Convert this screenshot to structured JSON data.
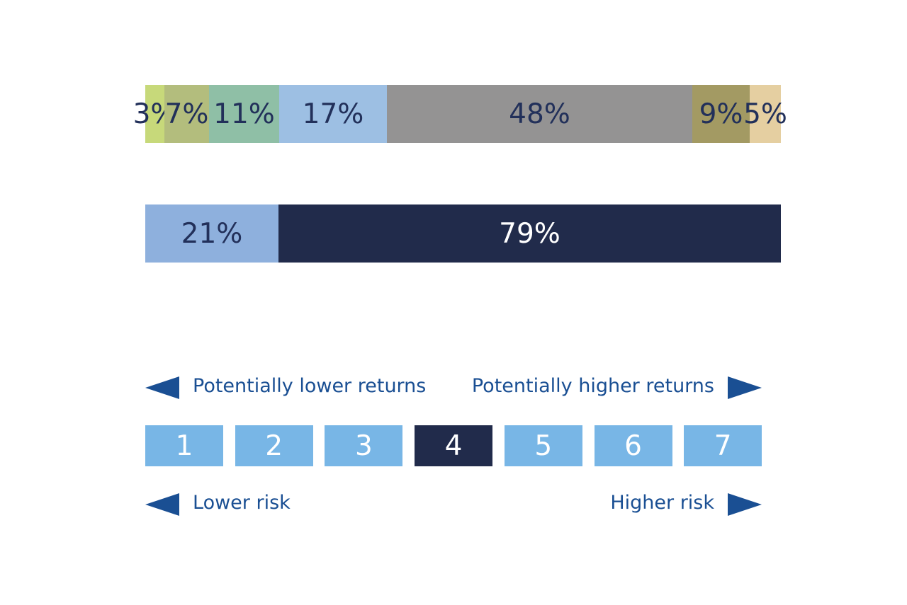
{
  "chart_data": [
    {
      "type": "bar",
      "orientation": "horizontal-stacked",
      "categories": [
        "3%",
        "7%",
        "11%",
        "17%",
        "48%",
        "9%",
        "5%"
      ],
      "values": [
        3,
        7,
        11,
        17,
        48,
        9,
        5
      ],
      "colors": [
        "#c7d97a",
        "#b3bd7d",
        "#8fbfa6",
        "#9dbfe3",
        "#949393",
        "#a39a63",
        "#e5cfa1"
      ],
      "text_color": "#22305a",
      "labels": [
        "3%",
        "7%",
        "11%",
        "17%",
        "48%",
        "9%",
        "5%"
      ]
    },
    {
      "type": "bar",
      "orientation": "horizontal-stacked",
      "categories": [
        "21%",
        "79%"
      ],
      "values": [
        21,
        79
      ],
      "colors": [
        "#8eb0dd",
        "#212b4b"
      ],
      "text_colors": [
        "#22305a",
        "#ffffff"
      ],
      "labels": [
        "21%",
        "79%"
      ]
    }
  ],
  "returns": {
    "left_label": "Potentially lower returns",
    "right_label": "Potentially higher returns"
  },
  "risk_scale": {
    "levels": [
      "1",
      "2",
      "3",
      "4",
      "5",
      "6",
      "7"
    ],
    "selected": "4",
    "color_default": "#78b6e6",
    "color_selected": "#212b4b"
  },
  "risk": {
    "left_label": "Lower risk",
    "right_label": "Higher risk"
  },
  "arrow_color": "#1a4f93"
}
